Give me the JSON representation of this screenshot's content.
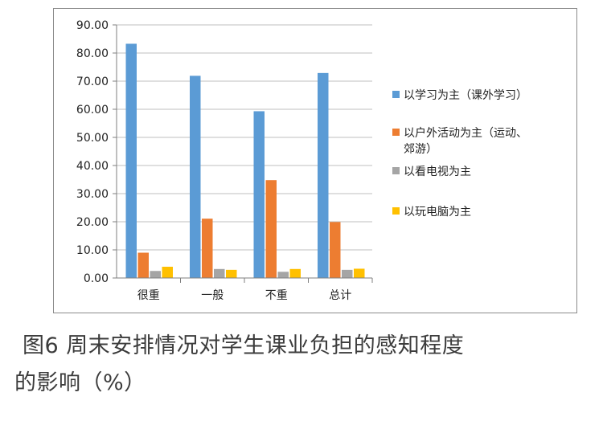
{
  "chart_data": {
    "type": "bar",
    "categories": [
      "很重",
      "一般",
      "不重",
      "总计"
    ],
    "series": [
      {
        "name": "以学习为主（课外学习）",
        "color": "#5b9bd5",
        "values": [
          83.3,
          71.9,
          59.3,
          72.9
        ]
      },
      {
        "name": "以户外活动为主（运动、郊游）",
        "color": "#ed7d31",
        "values": [
          9.0,
          21.1,
          34.8,
          19.9
        ]
      },
      {
        "name": "以看电视为主",
        "color": "#a5a5a5",
        "values": [
          2.5,
          3.2,
          2.2,
          2.9
        ]
      },
      {
        "name": "以玩电脑为主",
        "color": "#ffc000",
        "values": [
          4.0,
          2.9,
          3.2,
          3.3
        ]
      }
    ],
    "ylim": [
      0,
      90
    ],
    "yticks": [
      "0.00",
      "10.00",
      "20.00",
      "30.00",
      "40.00",
      "50.00",
      "60.00",
      "70.00",
      "80.00",
      "90.00"
    ],
    "grid": true,
    "legend_position": "right"
  },
  "caption": {
    "line1": "图6  周末安排情况对学生课业负担的感知程度",
    "line2": "的影响（%）"
  }
}
